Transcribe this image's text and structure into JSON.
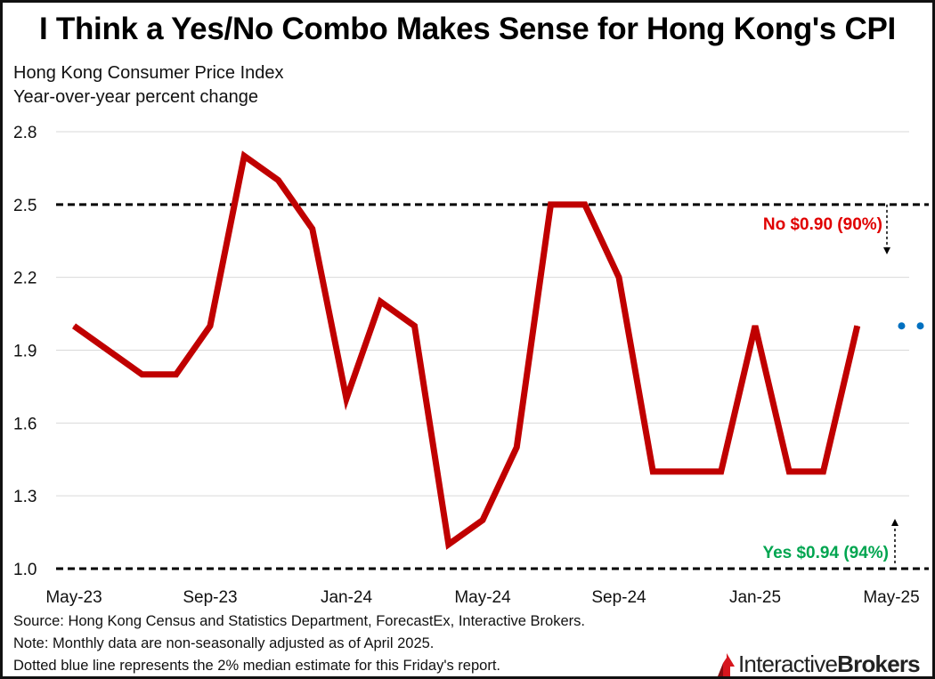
{
  "title": "I Think a Yes/No Combo Makes Sense for Hong Kong's CPI",
  "subtitle_line1": "Hong Kong Consumer Price Index",
  "subtitle_line2": "Year-over-year percent change",
  "notes": [
    "Source: Hong Kong Census and Statistics Department, ForecastEx, Interactive Brokers.",
    "Note: Monthly data are non-seasonally adjusted as of April 2025.",
    "Dotted blue line represents the 2% median estimate for this Friday's report."
  ],
  "logo": {
    "part1": "Interactive",
    "part2": "Brokers",
    "icon": "ib-flag-logo-icon"
  },
  "colors": {
    "series": "#c00000",
    "estimate": "#0070c0",
    "no_label": "#e00000",
    "yes_label": "#00a550",
    "grid": "#d9d9d9",
    "threshold": "#000000"
  },
  "chart_data": {
    "type": "line",
    "ylim": [
      1.0,
      2.8
    ],
    "yticks": [
      "1.0",
      "1.3",
      "1.6",
      "1.9",
      "2.2",
      "2.5",
      "2.8"
    ],
    "x_labels": [
      "May-23",
      "Sep-23",
      "Jan-24",
      "May-24",
      "Sep-24",
      "Jan-25",
      "May-25"
    ],
    "x_months": [
      "May-23",
      "Jun-23",
      "Jul-23",
      "Aug-23",
      "Sep-23",
      "Oct-23",
      "Nov-23",
      "Dec-23",
      "Jan-24",
      "Feb-24",
      "Mar-24",
      "Apr-24",
      "May-24",
      "Jun-24",
      "Jul-24",
      "Aug-24",
      "Sep-24",
      "Oct-24",
      "Nov-24",
      "Dec-24",
      "Jan-25",
      "Feb-25",
      "Mar-25",
      "Apr-25",
      "May-25"
    ],
    "grid": true,
    "series": [
      {
        "values": [
          2.0,
          1.9,
          1.8,
          1.8,
          2.0,
          2.7,
          2.6,
          2.4,
          1.7,
          2.1,
          2.0,
          1.1,
          1.2,
          1.5,
          2.5,
          2.5,
          2.2,
          1.4,
          1.4,
          1.4,
          2.0,
          1.4,
          1.4,
          2.0
        ]
      }
    ],
    "estimate": {
      "values": [
        2.0,
        2.0
      ],
      "x_index": [
        24.3,
        24.85
      ]
    },
    "thresholds": [
      {
        "value": 2.5,
        "label": "No $0.90 (90%)",
        "arrow": "down"
      },
      {
        "value": 1.0,
        "label": "Yes $0.94 (94%)",
        "arrow": "up"
      }
    ]
  }
}
